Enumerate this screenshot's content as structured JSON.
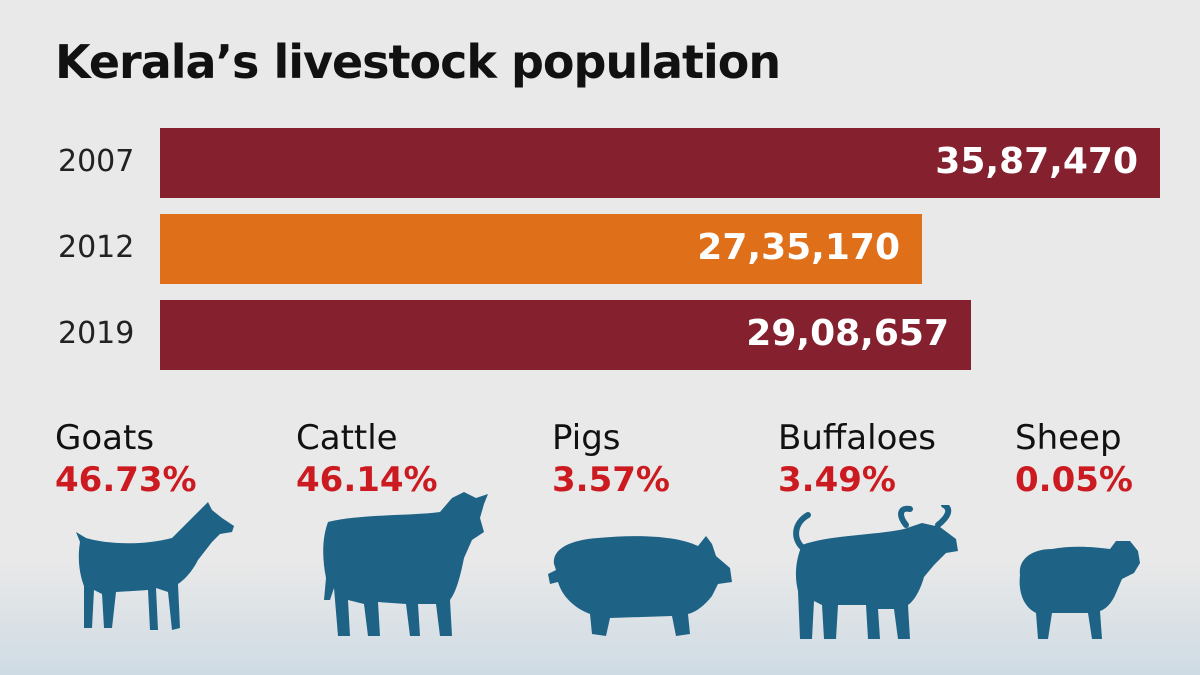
{
  "title": "Kerala’s livestock population",
  "colors": {
    "dark": "#85202e",
    "orange": "#e06f1a",
    "pct": "#cc1b20",
    "animal": "#1e6386"
  },
  "chart_data": {
    "type": "bar",
    "orientation": "horizontal",
    "categories": [
      "2007",
      "2012",
      "2019"
    ],
    "values": [
      3587470,
      2735170,
      2908657
    ],
    "labels": [
      "35,87,470",
      "27,35,170",
      "29,08,657"
    ],
    "colors": [
      "#85202e",
      "#e06f1a",
      "#85202e"
    ],
    "title": "Kerala’s livestock population"
  },
  "breakdown": [
    {
      "name": "Goats",
      "pct": "46.73%",
      "icon": "goat-icon"
    },
    {
      "name": "Cattle",
      "pct": "46.14%",
      "icon": "cattle-icon"
    },
    {
      "name": "Pigs",
      "pct": "3.57%",
      "icon": "pig-icon"
    },
    {
      "name": "Buffaloes",
      "pct": "3.49%",
      "icon": "buffalo-icon"
    },
    {
      "name": "Sheep",
      "pct": "0.05%",
      "icon": "sheep-icon"
    }
  ]
}
